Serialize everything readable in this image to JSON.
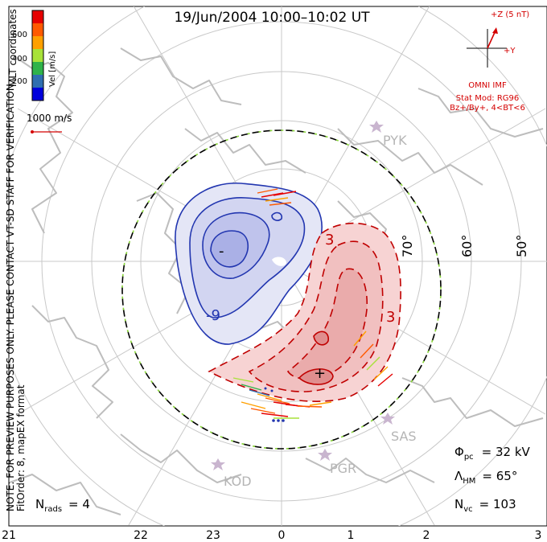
{
  "title": "19/Jun/2004  10:00–10:02  UT",
  "colorbar": {
    "label": "Vel [m/s]",
    "ticks": [
      "600",
      "400",
      "200"
    ],
    "colors": [
      "#e60000",
      "#ff5a00",
      "#ffa000",
      "#a8e23a",
      "#2fb34a",
      "#2f6fb0",
      "#0000dc"
    ]
  },
  "coords_label": "MLT coordinates",
  "vector_scale": "1000 m/s",
  "imf": {
    "z_label": "+Z (5 nT)",
    "y_label": "+Y",
    "source": "OMNI IMF",
    "model": "Stat Mod: RG96",
    "conditions": "Bz+/By+, 4<BT<6"
  },
  "note": "NOTE: FOR PREVIEW PURPOSES ONLY. PLEASE CONTACT VT-SD STAFF FOR VERIFICATION.",
  "fit_order": "FitOrder: 8, mapEX format",
  "contour_labels": [
    "-9",
    "3",
    "3",
    "-",
    "+"
  ],
  "latitude_labels": [
    "70°",
    "60°",
    "50°"
  ],
  "stations": [
    "PYK",
    "SAS",
    "PGR",
    "KOD"
  ],
  "stats": {
    "phi_pc_symbol": "Φ",
    "phi_pc_sub": "pc",
    "phi_pc_value": "= 32 kV",
    "lambda_hm_symbol": "Λ",
    "lambda_hm_sub": "HM",
    "lambda_hm_value": "= 65°",
    "n_vc_symbol": "N",
    "n_vc_sub": "vc",
    "n_vc_value": "= 103",
    "n_rads_symbol": "N",
    "n_rads_sub": "rads",
    "n_rads_value": "= 4"
  },
  "mlt_ticks": [
    "21",
    "22",
    "23",
    "0",
    "1",
    "2",
    "3"
  ]
}
